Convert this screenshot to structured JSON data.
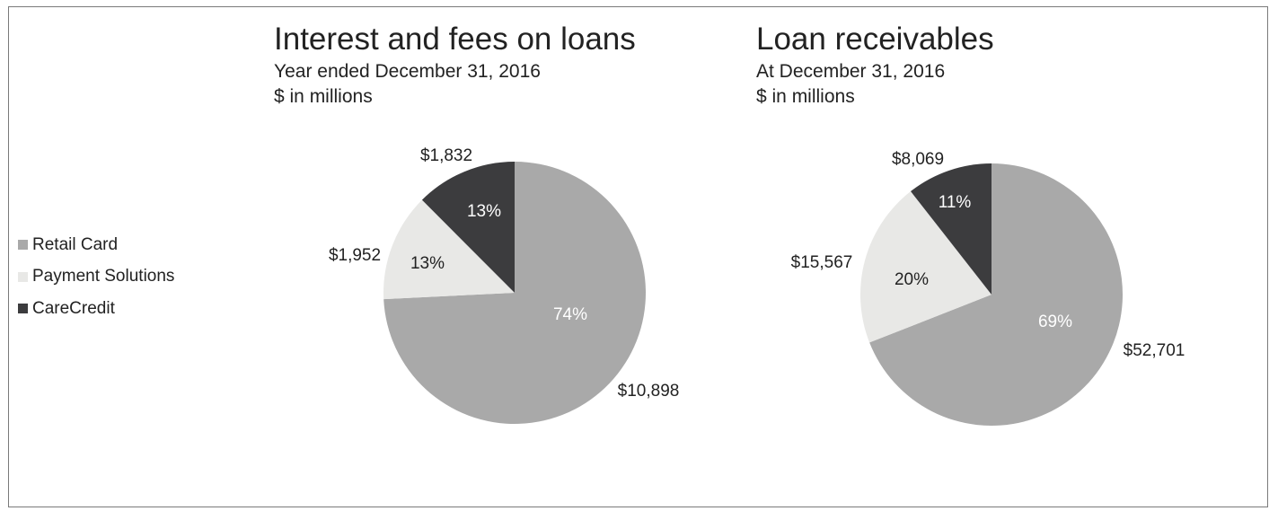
{
  "colors": {
    "retail_card": "#a9a9a9",
    "payment_solutions": "#e8e8e6",
    "care_credit": "#3c3c3e"
  },
  "legend": {
    "items": [
      {
        "label": "Retail Card",
        "color": "#a9a9a9"
      },
      {
        "label": "Payment Solutions",
        "color": "#e8e8e6"
      },
      {
        "label": "CareCredit",
        "color": "#3c3c3e"
      }
    ]
  },
  "chart_data": [
    {
      "type": "pie",
      "title": "Interest and fees on loans",
      "subtitle": "Year ended December 31, 2016",
      "unit_label": "$ in millions",
      "series": [
        {
          "name": "Retail Card",
          "value": 10898,
          "value_label": "$10,898",
          "percent_label": "74%"
        },
        {
          "name": "Payment Solutions",
          "value": 1952,
          "value_label": "$1,952",
          "percent_label": "13%"
        },
        {
          "name": "CareCredit",
          "value": 1832,
          "value_label": "$1,832",
          "percent_label": "13%"
        }
      ]
    },
    {
      "type": "pie",
      "title": "Loan receivables",
      "subtitle": "At December 31, 2016",
      "unit_label": "$ in millions",
      "series": [
        {
          "name": "Retail Card",
          "value": 52701,
          "value_label": "$52,701",
          "percent_label": "69%"
        },
        {
          "name": "Payment Solutions",
          "value": 15567,
          "value_label": "$15,567",
          "percent_label": "20%"
        },
        {
          "name": "CareCredit",
          "value": 8069,
          "value_label": "$8,069",
          "percent_label": "11%"
        }
      ]
    }
  ]
}
